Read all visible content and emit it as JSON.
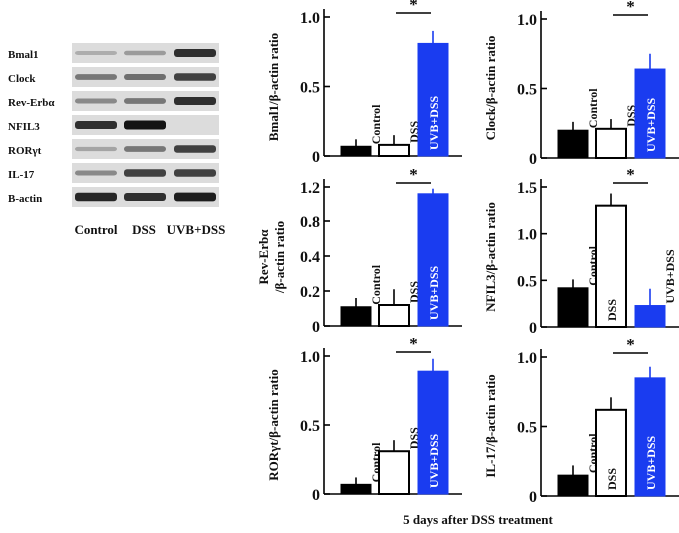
{
  "figure": {
    "footer": "5 days after DSS treatment",
    "bar_color_uvb": "#1a3cf0"
  },
  "western_blot": {
    "rows": [
      "Bmal1",
      "Clock",
      "Rev-Erbα",
      "NFIL3",
      "RORγt",
      "IL-17",
      "B-actin"
    ],
    "lanes": [
      "Control",
      "DSS",
      "UVB+DSS"
    ],
    "band_intensity": [
      [
        0.15,
        0.25,
        0.85
      ],
      [
        0.45,
        0.5,
        0.75
      ],
      [
        0.35,
        0.45,
        0.85
      ],
      [
        0.85,
        1.0,
        0.0
      ],
      [
        0.2,
        0.45,
        0.75
      ],
      [
        0.35,
        0.75,
        0.75
      ],
      [
        0.9,
        0.85,
        0.95
      ]
    ]
  },
  "chart_data": [
    {
      "type": "bar",
      "title": "",
      "ylabel": "Bmal1/β-actin ratio",
      "categories": [
        "Control",
        "DSS",
        "UVB+DSS"
      ],
      "values": [
        0.07,
        0.08,
        0.81
      ],
      "errors": [
        0.05,
        0.07,
        0.09
      ],
      "yticks": [
        "0",
        "0.5",
        "1.0"
      ],
      "ylim": [
        0,
        1.0
      ],
      "significance": {
        "between": [
          "DSS",
          "UVB+DSS"
        ],
        "label": "*"
      }
    },
    {
      "type": "bar",
      "title": "",
      "ylabel": "Clock/β-actin ratio",
      "categories": [
        "Control",
        "DSS",
        "UVB+DSS"
      ],
      "values": [
        0.2,
        0.21,
        0.64
      ],
      "errors": [
        0.06,
        0.07,
        0.11
      ],
      "yticks": [
        "0",
        "0.5",
        "1.0"
      ],
      "ylim": [
        0,
        1.0
      ],
      "significance": {
        "between": [
          "DSS",
          "UVB+DSS"
        ],
        "label": "*"
      }
    },
    {
      "type": "bar",
      "title": "",
      "ylabel": "Rev-Erbα /β-actin ratio",
      "categories": [
        "Control",
        "DSS",
        "UVB+DSS"
      ],
      "values": [
        0.11,
        0.12,
        1.12
      ],
      "errors": [
        0.05,
        0.09,
        0.06
      ],
      "yticks": [
        "0",
        "0.2",
        "0.4",
        "0.8",
        "1.2"
      ],
      "ylim": [
        0,
        1.2
      ],
      "significance": {
        "between": [
          "DSS",
          "UVB+DSS"
        ],
        "label": "*"
      }
    },
    {
      "type": "bar",
      "title": "",
      "ylabel": "NFIL3/β-actin ratio",
      "categories": [
        "Control",
        "DSS",
        "UVB+DSS"
      ],
      "values": [
        0.42,
        1.3,
        0.23
      ],
      "errors": [
        0.09,
        0.13,
        0.18
      ],
      "yticks": [
        "0",
        "0.5",
        "1.0",
        "1.5"
      ],
      "ylim": [
        0,
        1.5
      ],
      "significance": {
        "between": [
          "DSS",
          "UVB+DSS"
        ],
        "label": "*"
      }
    },
    {
      "type": "bar",
      "title": "",
      "ylabel": "RORγt/β-actin ratio",
      "categories": [
        "Control",
        "DSS",
        "UVB+DSS"
      ],
      "values": [
        0.07,
        0.31,
        0.89
      ],
      "errors": [
        0.05,
        0.08,
        0.09
      ],
      "yticks": [
        "0",
        "0.5",
        "1.0"
      ],
      "ylim": [
        0,
        1.0
      ],
      "significance": {
        "between": [
          "DSS",
          "UVB+DSS"
        ],
        "label": "*"
      }
    },
    {
      "type": "bar",
      "title": "",
      "ylabel": "IL-17/β-actin ratio",
      "categories": [
        "Control",
        "DSS",
        "UVB+DSS"
      ],
      "values": [
        0.15,
        0.62,
        0.85
      ],
      "errors": [
        0.07,
        0.09,
        0.08
      ],
      "yticks": [
        "0",
        "0.5",
        "1.0"
      ],
      "ylim": [
        0,
        1.0
      ],
      "significance": {
        "between": [
          "DSS",
          "UVB+DSS"
        ],
        "label": "*"
      }
    }
  ]
}
